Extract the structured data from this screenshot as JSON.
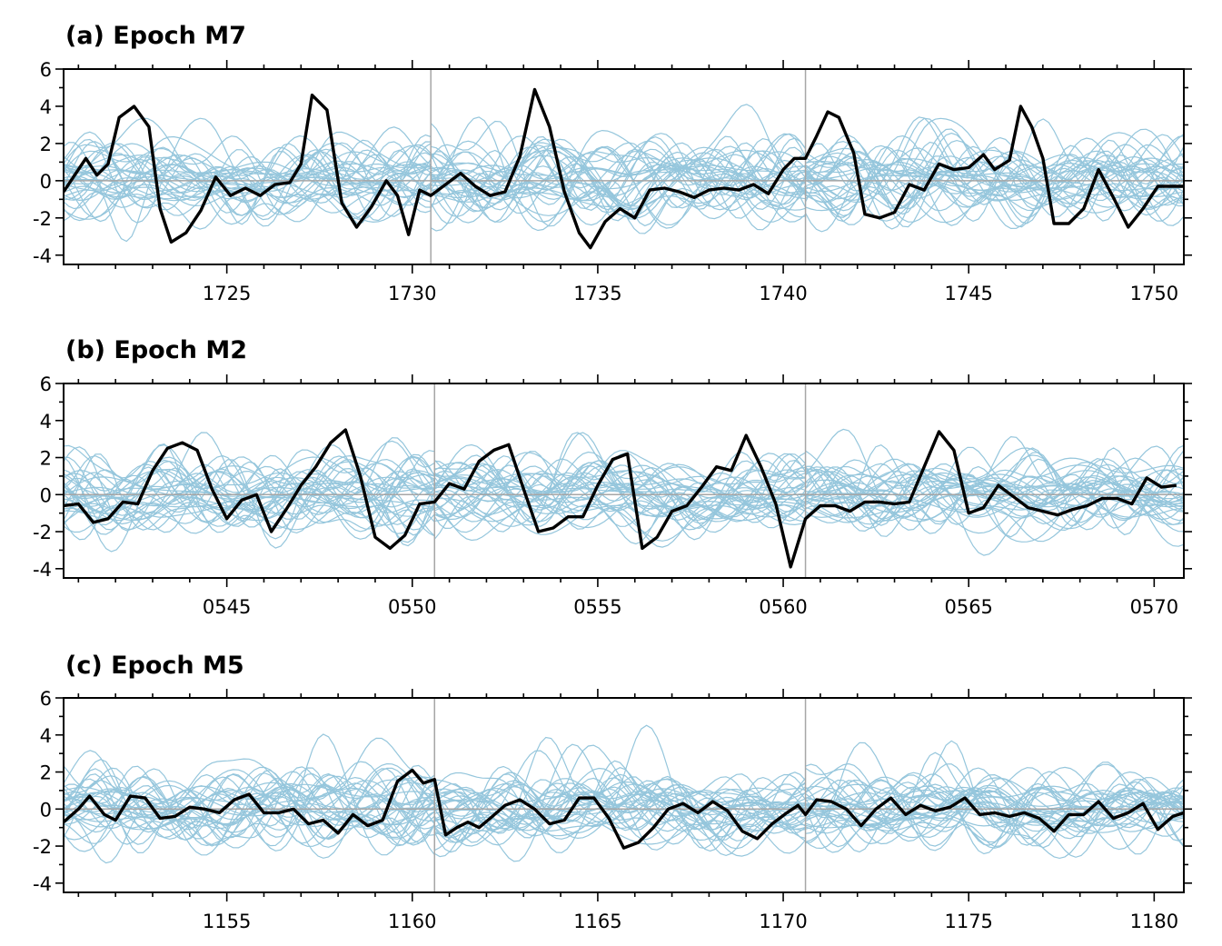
{
  "colors": {
    "ensemble": "#95c6dc",
    "highlight": "#000000",
    "zero_line": "#a6a6a6",
    "divider": "#a6a6a6",
    "axes": "#000000"
  },
  "chart_data": [
    {
      "type": "line",
      "title": "(a) Epoch M7",
      "xlabel": "",
      "ylabel": "",
      "ylim": [
        -4.5,
        6
      ],
      "yticks": [
        "-4",
        "-2",
        "0",
        "2",
        "4",
        "6"
      ],
      "xlim": [
        1720.6,
        1750.8
      ],
      "xticks": [
        "1725",
        "1730",
        "1735",
        "1740",
        "1745",
        "1750"
      ],
      "segment_breaks": [
        1730.5,
        1740.6
      ],
      "grid": false,
      "legend": "none",
      "series": [
        {
          "values": [
            [
              1720.6,
              -0.6
            ],
            [
              1720.9,
              0.3
            ],
            [
              1721.2,
              1.2
            ],
            [
              1721.5,
              0.3
            ],
            [
              1721.8,
              0.9
            ],
            [
              1722.1,
              3.4
            ],
            [
              1722.5,
              4.0
            ],
            [
              1722.9,
              2.9
            ],
            [
              1723.2,
              -1.5
            ],
            [
              1723.5,
              -3.3
            ],
            [
              1723.9,
              -2.8
            ],
            [
              1724.3,
              -1.6
            ],
            [
              1724.7,
              0.2
            ],
            [
              1725.1,
              -0.8
            ],
            [
              1725.5,
              -0.4
            ],
            [
              1725.9,
              -0.8
            ],
            [
              1726.3,
              -0.2
            ],
            [
              1726.7,
              -0.1
            ],
            [
              1727.0,
              0.9
            ],
            [
              1727.3,
              4.6
            ],
            [
              1727.7,
              3.8
            ],
            [
              1728.1,
              -1.2
            ],
            [
              1728.5,
              -2.5
            ],
            [
              1728.9,
              -1.4
            ],
            [
              1729.3,
              0.0
            ],
            [
              1729.6,
              -0.8
            ],
            [
              1729.9,
              -2.9
            ],
            [
              1730.2,
              -0.5
            ],
            [
              1730.5,
              -0.8
            ],
            [
              1730.9,
              -0.2
            ],
            [
              1731.3,
              0.4
            ],
            [
              1731.7,
              -0.3
            ],
            [
              1732.1,
              -0.8
            ],
            [
              1732.5,
              -0.6
            ],
            [
              1732.9,
              1.3
            ],
            [
              1733.3,
              4.9
            ],
            [
              1733.7,
              2.9
            ],
            [
              1734.1,
              -0.6
            ],
            [
              1734.5,
              -2.8
            ],
            [
              1734.8,
              -3.6
            ],
            [
              1735.2,
              -2.2
            ],
            [
              1735.6,
              -1.5
            ],
            [
              1736.0,
              -2.0
            ],
            [
              1736.4,
              -0.5
            ],
            [
              1736.8,
              -0.4
            ],
            [
              1737.2,
              -0.6
            ],
            [
              1737.6,
              -0.9
            ],
            [
              1738.0,
              -0.5
            ],
            [
              1738.4,
              -0.4
            ],
            [
              1738.8,
              -0.5
            ],
            [
              1739.2,
              -0.2
            ],
            [
              1739.6,
              -0.7
            ],
            [
              1740.0,
              0.6
            ],
            [
              1740.3,
              1.2
            ],
            [
              1740.6,
              1.2
            ],
            [
              1740.9,
              2.4
            ],
            [
              1741.2,
              3.7
            ],
            [
              1741.5,
              3.4
            ],
            [
              1741.9,
              1.5
            ],
            [
              1742.2,
              -1.8
            ],
            [
              1742.6,
              -2.0
            ],
            [
              1743.0,
              -1.7
            ],
            [
              1743.4,
              -0.2
            ],
            [
              1743.8,
              -0.5
            ],
            [
              1744.2,
              0.9
            ],
            [
              1744.6,
              0.6
            ],
            [
              1745.0,
              0.7
            ],
            [
              1745.4,
              1.4
            ],
            [
              1745.7,
              0.6
            ],
            [
              1746.1,
              1.1
            ],
            [
              1746.4,
              4.0
            ],
            [
              1746.7,
              2.9
            ],
            [
              1747.0,
              1.2
            ],
            [
              1747.3,
              -2.3
            ],
            [
              1747.7,
              -2.3
            ],
            [
              1748.1,
              -1.5
            ],
            [
              1748.5,
              0.6
            ],
            [
              1748.9,
              -0.9
            ],
            [
              1749.3,
              -2.5
            ],
            [
              1749.7,
              -1.5
            ],
            [
              1750.1,
              -0.3
            ],
            [
              1750.5,
              -0.3
            ],
            [
              1750.8,
              -0.3
            ]
          ]
        }
      ]
    },
    {
      "type": "line",
      "title": "(b) Epoch M2",
      "xlabel": "",
      "ylabel": "",
      "ylim": [
        -4.5,
        6
      ],
      "yticks": [
        "-4",
        "-2",
        "0",
        "2",
        "4",
        "6"
      ],
      "xlim": [
        540.6,
        570.8
      ],
      "xticks": [
        "0545",
        "0550",
        "0555",
        "0560",
        "0565",
        "0570"
      ],
      "segment_breaks": [
        550.6,
        560.6
      ],
      "grid": false,
      "legend": "none",
      "series": [
        {
          "values": [
            [
              540.6,
              -0.6
            ],
            [
              541.0,
              -0.5
            ],
            [
              541.4,
              -1.5
            ],
            [
              541.8,
              -1.3
            ],
            [
              542.2,
              -0.4
            ],
            [
              542.6,
              -0.5
            ],
            [
              543.0,
              1.3
            ],
            [
              543.4,
              2.5
            ],
            [
              543.8,
              2.8
            ],
            [
              544.2,
              2.4
            ],
            [
              544.6,
              0.3
            ],
            [
              545.0,
              -1.3
            ],
            [
              545.4,
              -0.3
            ],
            [
              545.8,
              0.0
            ],
            [
              546.2,
              -2.0
            ],
            [
              546.6,
              -0.8
            ],
            [
              547.0,
              0.5
            ],
            [
              547.4,
              1.5
            ],
            [
              547.8,
              2.8
            ],
            [
              548.2,
              3.5
            ],
            [
              548.6,
              1.0
            ],
            [
              549.0,
              -2.3
            ],
            [
              549.4,
              -2.9
            ],
            [
              549.8,
              -2.2
            ],
            [
              550.2,
              -0.5
            ],
            [
              550.6,
              -0.4
            ],
            [
              551.0,
              0.6
            ],
            [
              551.4,
              0.3
            ],
            [
              551.8,
              1.8
            ],
            [
              552.2,
              2.4
            ],
            [
              552.6,
              2.7
            ],
            [
              553.0,
              0.3
            ],
            [
              553.4,
              -2.0
            ],
            [
              553.8,
              -1.8
            ],
            [
              554.2,
              -1.2
            ],
            [
              554.6,
              -1.2
            ],
            [
              555.0,
              0.5
            ],
            [
              555.4,
              1.9
            ],
            [
              555.8,
              2.2
            ],
            [
              556.2,
              -2.9
            ],
            [
              556.6,
              -2.3
            ],
            [
              557.0,
              -0.9
            ],
            [
              557.4,
              -0.6
            ],
            [
              557.8,
              0.4
            ],
            [
              558.2,
              1.5
            ],
            [
              558.6,
              1.3
            ],
            [
              559.0,
              3.2
            ],
            [
              559.4,
              1.5
            ],
            [
              559.8,
              -0.5
            ],
            [
              560.2,
              -3.9
            ],
            [
              560.6,
              -1.3
            ],
            [
              561.0,
              -0.6
            ],
            [
              561.4,
              -0.6
            ],
            [
              561.8,
              -0.9
            ],
            [
              562.2,
              -0.4
            ],
            [
              562.6,
              -0.4
            ],
            [
              563.0,
              -0.5
            ],
            [
              563.4,
              -0.4
            ],
            [
              563.8,
              1.5
            ],
            [
              564.2,
              3.4
            ],
            [
              564.6,
              2.4
            ],
            [
              565.0,
              -1.0
            ],
            [
              565.4,
              -0.7
            ],
            [
              565.8,
              0.5
            ],
            [
              566.2,
              -0.1
            ],
            [
              566.6,
              -0.7
            ],
            [
              567.0,
              -0.9
            ],
            [
              567.4,
              -1.1
            ],
            [
              567.8,
              -0.8
            ],
            [
              568.2,
              -0.6
            ],
            [
              568.6,
              -0.2
            ],
            [
              569.0,
              -0.2
            ],
            [
              569.4,
              -0.5
            ],
            [
              569.8,
              0.9
            ],
            [
              570.2,
              0.4
            ],
            [
              570.6,
              0.5
            ]
          ]
        }
      ]
    },
    {
      "type": "line",
      "title": "(c) Epoch M5",
      "xlabel": "",
      "ylabel": "",
      "ylim": [
        -4.5,
        6
      ],
      "yticks": [
        "-4",
        "-2",
        "0",
        "2",
        "4",
        "6"
      ],
      "xlim": [
        1150.6,
        1180.8
      ],
      "xticks": [
        "1155",
        "1160",
        "1165",
        "1170",
        "1175",
        "1180"
      ],
      "segment_breaks": [
        1160.6,
        1170.6
      ],
      "grid": false,
      "legend": "none",
      "series": [
        {
          "values": [
            [
              1150.6,
              -0.7
            ],
            [
              1151.0,
              0.0
            ],
            [
              1151.3,
              0.7
            ],
            [
              1151.7,
              -0.3
            ],
            [
              1152.0,
              -0.6
            ],
            [
              1152.4,
              0.7
            ],
            [
              1152.8,
              0.6
            ],
            [
              1153.2,
              -0.5
            ],
            [
              1153.6,
              -0.4
            ],
            [
              1154.0,
              0.1
            ],
            [
              1154.4,
              0.0
            ],
            [
              1154.8,
              -0.2
            ],
            [
              1155.2,
              0.5
            ],
            [
              1155.6,
              0.8
            ],
            [
              1156.0,
              -0.2
            ],
            [
              1156.4,
              -0.2
            ],
            [
              1156.8,
              0.0
            ],
            [
              1157.2,
              -0.8
            ],
            [
              1157.6,
              -0.6
            ],
            [
              1158.0,
              -1.3
            ],
            [
              1158.4,
              -0.3
            ],
            [
              1158.8,
              -0.9
            ],
            [
              1159.2,
              -0.6
            ],
            [
              1159.6,
              1.5
            ],
            [
              1160.0,
              2.1
            ],
            [
              1160.3,
              1.4
            ],
            [
              1160.6,
              1.6
            ],
            [
              1160.9,
              -1.4
            ],
            [
              1161.2,
              -1.0
            ],
            [
              1161.5,
              -0.7
            ],
            [
              1161.8,
              -1.0
            ],
            [
              1162.1,
              -0.5
            ],
            [
              1162.5,
              0.2
            ],
            [
              1162.9,
              0.5
            ],
            [
              1163.3,
              0.0
            ],
            [
              1163.7,
              -0.8
            ],
            [
              1164.1,
              -0.6
            ],
            [
              1164.5,
              0.6
            ],
            [
              1164.9,
              0.6
            ],
            [
              1165.3,
              -0.5
            ],
            [
              1165.7,
              -2.1
            ],
            [
              1166.1,
              -1.8
            ],
            [
              1166.5,
              -1.0
            ],
            [
              1166.9,
              0.0
            ],
            [
              1167.3,
              0.3
            ],
            [
              1167.7,
              -0.2
            ],
            [
              1168.1,
              0.4
            ],
            [
              1168.5,
              -0.1
            ],
            [
              1168.9,
              -1.2
            ],
            [
              1169.3,
              -1.6
            ],
            [
              1169.7,
              -0.8
            ],
            [
              1170.1,
              -0.2
            ],
            [
              1170.4,
              0.2
            ],
            [
              1170.6,
              -0.3
            ],
            [
              1170.9,
              0.5
            ],
            [
              1171.3,
              0.4
            ],
            [
              1171.7,
              0.0
            ],
            [
              1172.1,
              -0.9
            ],
            [
              1172.5,
              0.0
            ],
            [
              1172.9,
              0.6
            ],
            [
              1173.3,
              -0.3
            ],
            [
              1173.7,
              0.2
            ],
            [
              1174.1,
              -0.1
            ],
            [
              1174.5,
              0.1
            ],
            [
              1174.9,
              0.6
            ],
            [
              1175.3,
              -0.3
            ],
            [
              1175.7,
              -0.2
            ],
            [
              1176.1,
              -0.4
            ],
            [
              1176.5,
              -0.2
            ],
            [
              1176.9,
              -0.5
            ],
            [
              1177.3,
              -1.2
            ],
            [
              1177.7,
              -0.3
            ],
            [
              1178.1,
              -0.3
            ],
            [
              1178.5,
              0.4
            ],
            [
              1178.9,
              -0.5
            ],
            [
              1179.3,
              -0.2
            ],
            [
              1179.7,
              0.3
            ],
            [
              1180.1,
              -1.1
            ],
            [
              1180.5,
              -0.4
            ],
            [
              1180.8,
              -0.2
            ]
          ]
        }
      ]
    }
  ]
}
